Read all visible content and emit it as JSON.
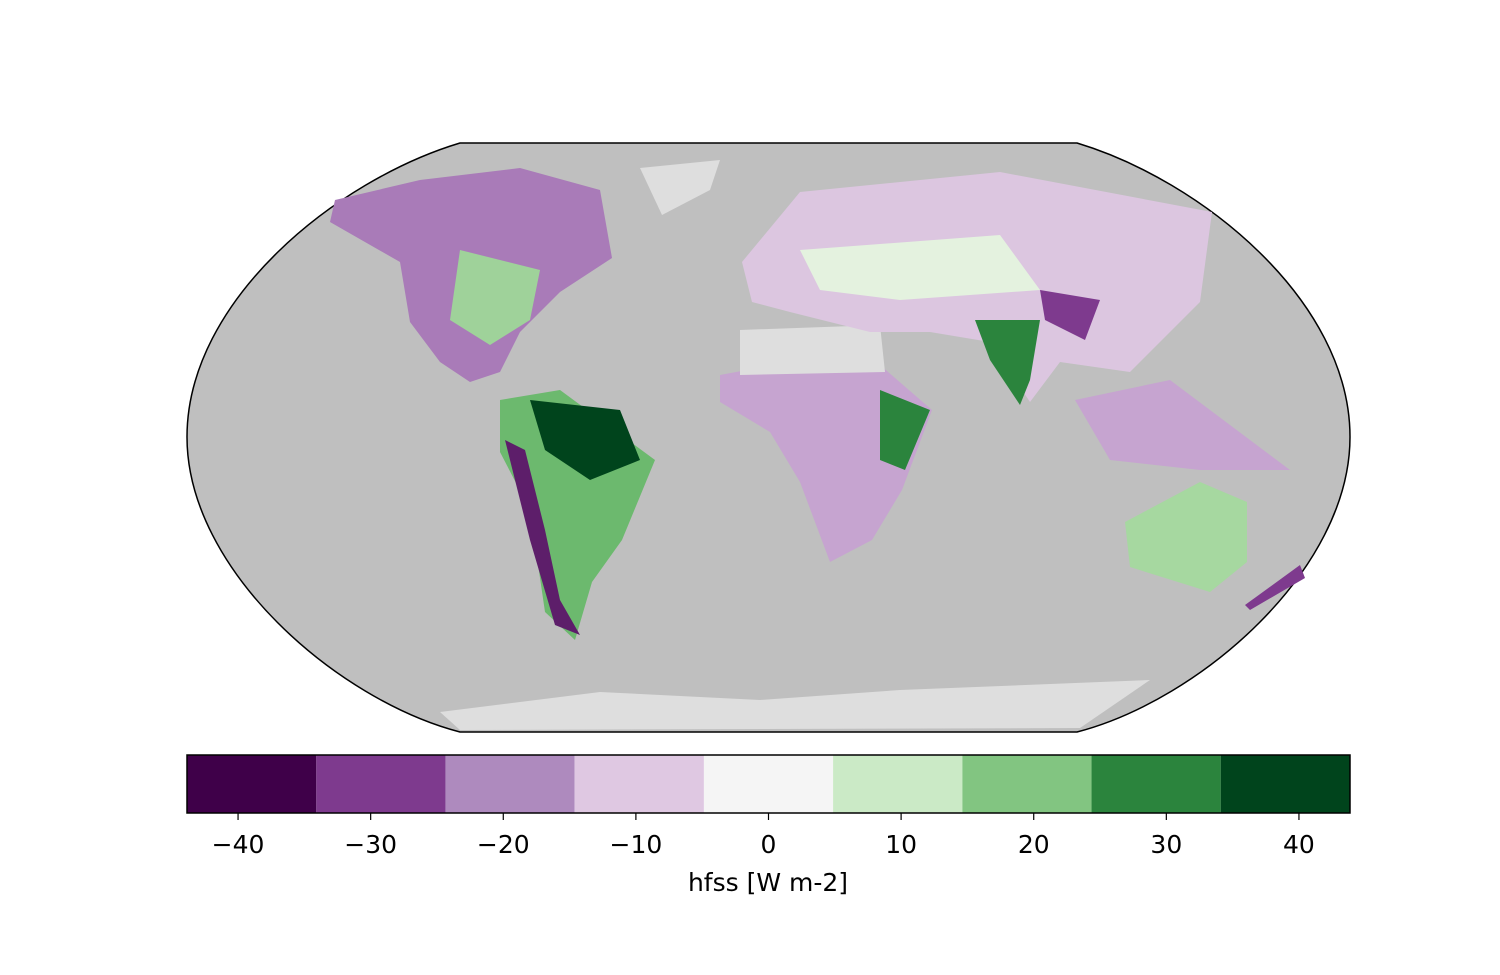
{
  "chart_data": {
    "type": "colorbar",
    "xlabel": "hfss [W m-2]",
    "bins": [
      -43.85,
      -34.1,
      -24.36,
      -14.62,
      -4.87,
      4.87,
      14.62,
      24.36,
      34.1,
      43.85
    ],
    "colors": [
      "#3f0049",
      "#7e3a8e",
      "#ae8abe",
      "#dfc8e2",
      "#f5f5f5",
      "#cbeac6",
      "#82c581",
      "#2b843d",
      "#00441c"
    ],
    "xlim": [
      -43.85,
      43.85
    ],
    "xticks": [
      {
        "value": -40,
        "label": "−40"
      },
      {
        "value": -30,
        "label": "−30"
      },
      {
        "value": -20,
        "label": "−20"
      },
      {
        "value": -10,
        "label": "−10"
      },
      0,
      10,
      20,
      30,
      40
    ]
  }
}
